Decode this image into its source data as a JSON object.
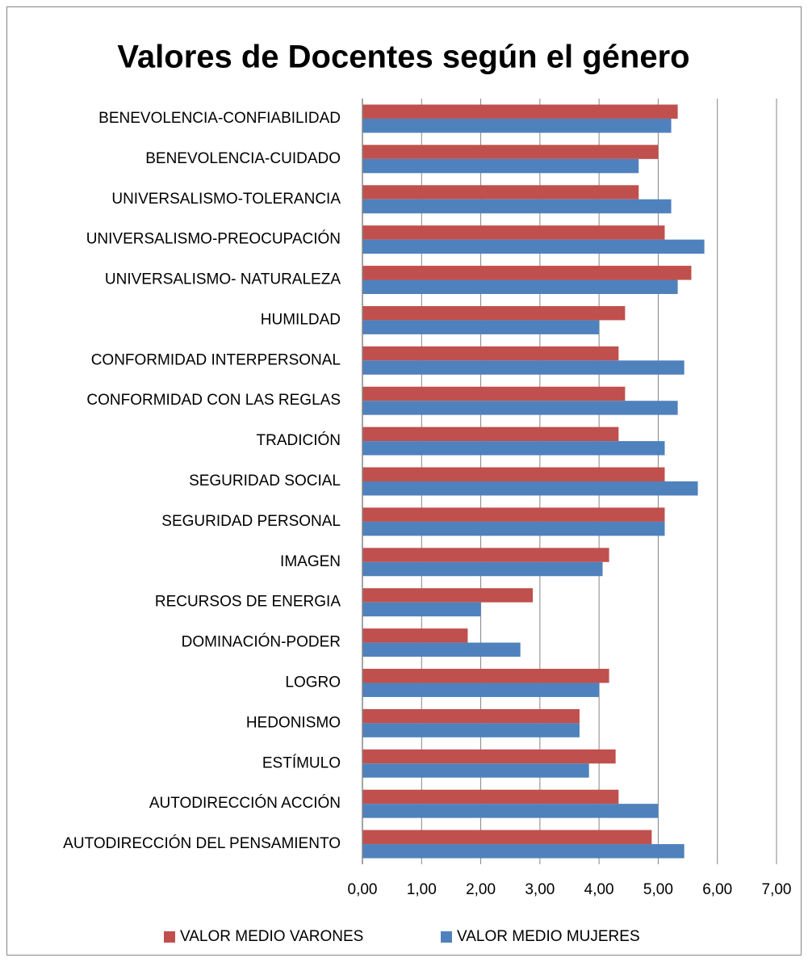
{
  "chart_data": {
    "type": "hbar",
    "title": "Valores de Docentes según el género",
    "categories": [
      "BENEVOLENCIA-CONFIABILIDAD",
      "BENEVOLENCIA-CUIDADO",
      "UNIVERSALISMO-TOLERANCIA",
      "UNIVERSALISMO-PREOCUPACIÓN",
      "UNIVERSALISMO- NATURALEZA ",
      "HUMILDAD",
      "CONFORMIDAD INTERPERSONAL",
      "CONFORMIDAD CON LAS REGLAS",
      "TRADICIÓN",
      "SEGURIDAD SOCIAL",
      "SEGURIDAD PERSONAL",
      "IMAGEN",
      "RECURSOS DE ENERGIA",
      "DOMINACIÓN-PODER",
      "LOGRO",
      "HEDONISMO",
      "ESTÍMULO",
      "AUTODIRECCIÓN ACCIÓN",
      "AUTODIRECCIÓN DEL PENSAMIENTO"
    ],
    "series": [
      {
        "name": "VALOR MEDIO VARONES",
        "color": "#c0504d",
        "values": [
          5.33,
          5.0,
          4.67,
          5.11,
          5.56,
          4.44,
          4.33,
          4.44,
          4.33,
          5.11,
          5.11,
          4.17,
          2.88,
          1.78,
          4.17,
          3.67,
          4.28,
          4.33,
          4.89
        ]
      },
      {
        "name": "VALOR MEDIO MUJERES",
        "color": "#4f81bd",
        "values": [
          5.22,
          4.67,
          5.22,
          5.78,
          5.33,
          4.0,
          5.44,
          5.33,
          5.11,
          5.67,
          5.11,
          4.06,
          2.0,
          2.67,
          4.0,
          3.67,
          3.83,
          5.0,
          5.44
        ]
      }
    ],
    "xlim": [
      0,
      7
    ],
    "xticks": [
      {
        "value": 0,
        "label": "0,00"
      },
      {
        "value": 1,
        "label": "1,00"
      },
      {
        "value": 2,
        "label": "2,00"
      },
      {
        "value": 3,
        "label": "3,00"
      },
      {
        "value": 4,
        "label": "4,00"
      },
      {
        "value": 5,
        "label": "5,00"
      },
      {
        "value": 6,
        "label": "6,00"
      },
      {
        "value": 7,
        "label": "7,00"
      }
    ],
    "grid": true,
    "legend": "bottom"
  }
}
